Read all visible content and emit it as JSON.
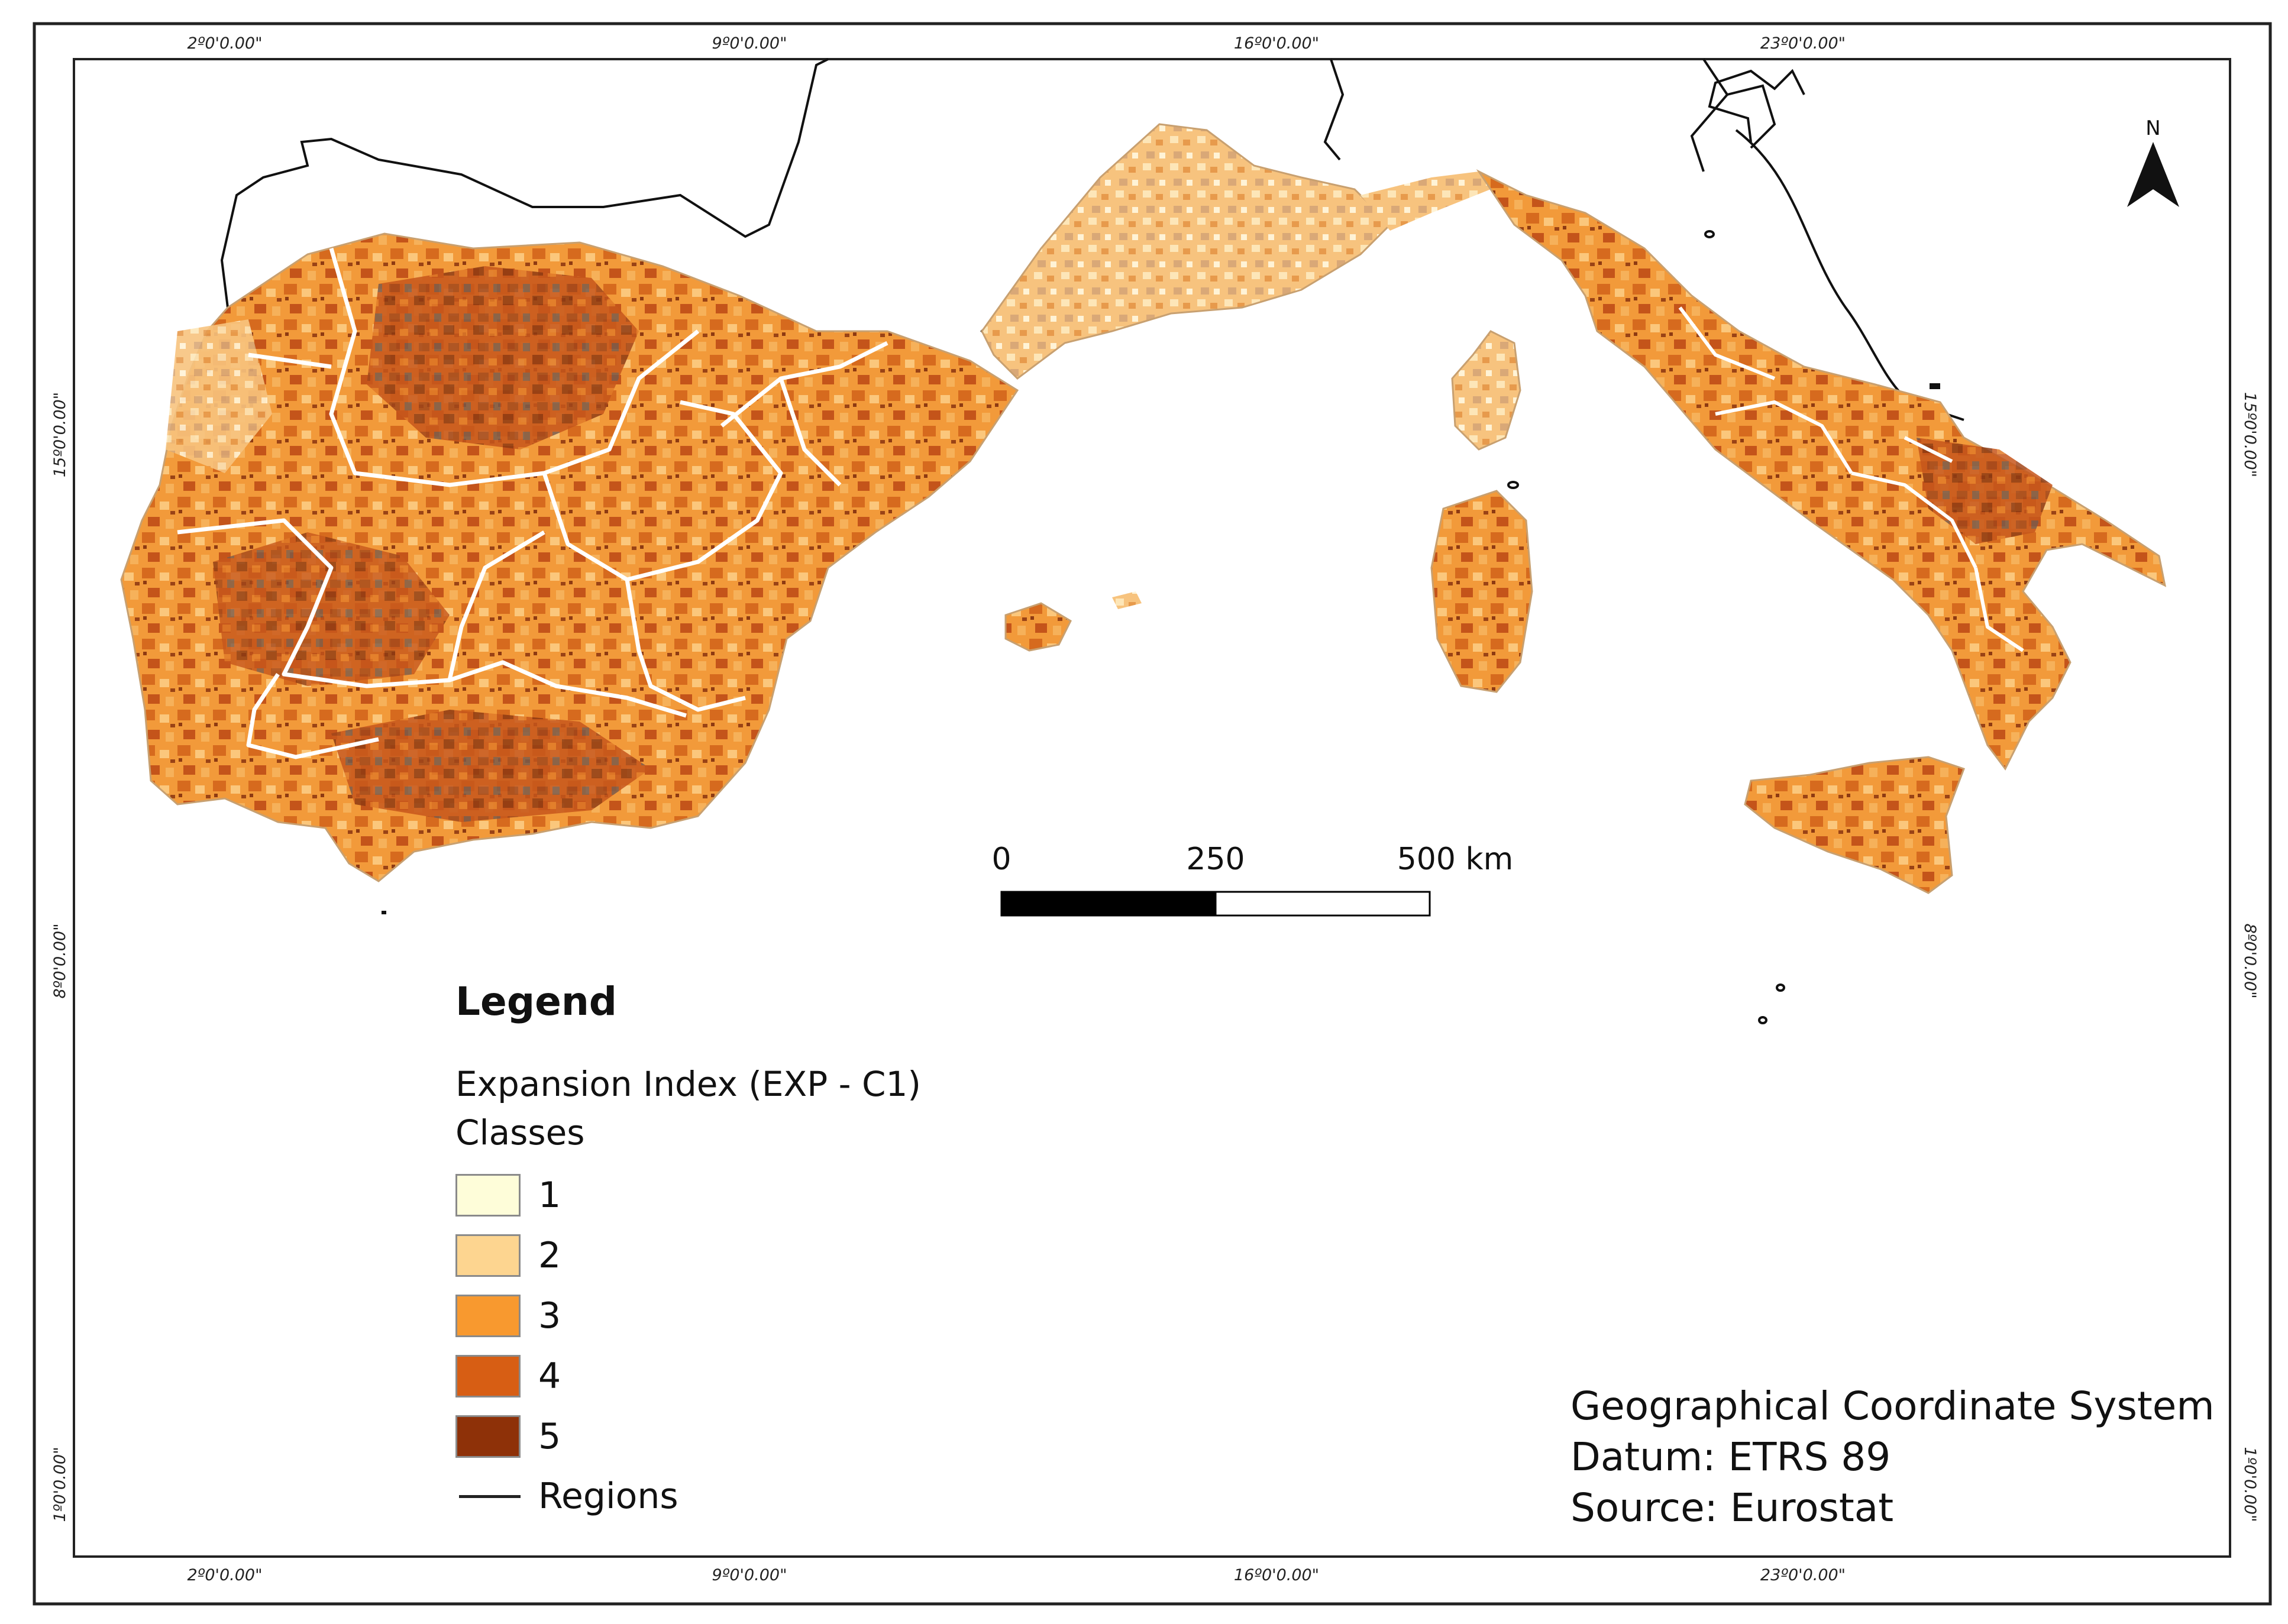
{
  "map": {
    "lon_labels": [
      "2º0'0.00\"",
      "9º0'0.00\"",
      "16º0'0.00\"",
      "23º0'0.00\""
    ],
    "lat_labels": [
      "15º0'0.00\"",
      "8º0'0.00\"",
      "1º0'0.00\""
    ],
    "north_label": "N",
    "scale_labels": [
      "0",
      "250",
      "500 km"
    ],
    "land_color": "#ffffff",
    "coast_color": "#111111",
    "region_border_color": "#ffffff"
  },
  "legend": {
    "title": "Legend",
    "subtitle_1": "Expansion Index (EXP - C1)",
    "subtitle_2": "Classes",
    "classes": [
      {
        "label": "1",
        "color": "#fefdd9"
      },
      {
        "label": "2",
        "color": "#fdd590"
      },
      {
        "label": "3",
        "color": "#f8992f"
      },
      {
        "label": "4",
        "color": "#d75e14"
      },
      {
        "label": "5",
        "color": "#8e3108"
      }
    ],
    "regions_label": "Regions"
  },
  "crs_note": {
    "line_1": "Geographical Coordinate System",
    "line_2": "Datum: ETRS 89",
    "line_3": "Source: Eurostat"
  }
}
